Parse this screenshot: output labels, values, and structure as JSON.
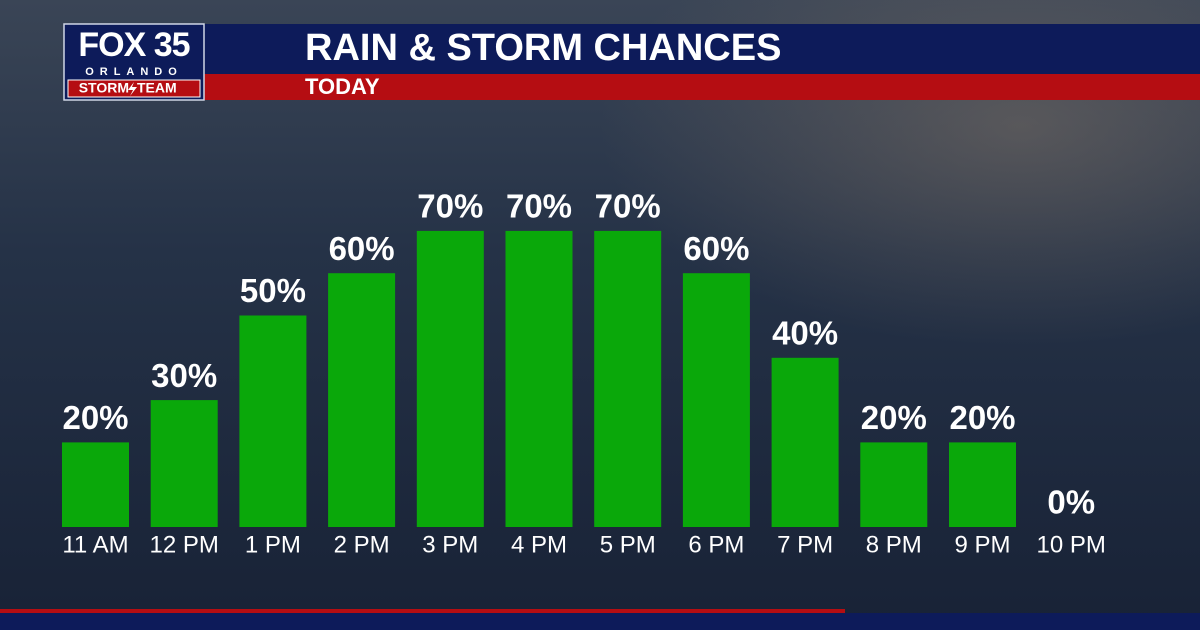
{
  "logo": {
    "brand": "FOX 35",
    "city": "ORLANDO",
    "team": [
      "STORM",
      "TEAM"
    ]
  },
  "chart_data": {
    "type": "bar",
    "title": "RAIN & STORM CHANCES",
    "subtitle": "TODAY",
    "categories": [
      "11 AM",
      "12 PM",
      "1 PM",
      "2 PM",
      "3 PM",
      "4 PM",
      "5 PM",
      "6 PM",
      "7 PM",
      "8 PM",
      "9 PM",
      "10 PM"
    ],
    "values": [
      20,
      30,
      50,
      60,
      70,
      70,
      70,
      60,
      40,
      20,
      20,
      0
    ],
    "value_labels": [
      "20%",
      "30%",
      "50%",
      "60%",
      "70%",
      "70%",
      "70%",
      "60%",
      "40%",
      "20%",
      "20%",
      "0%"
    ],
    "color": "#0aa80a"
  }
}
